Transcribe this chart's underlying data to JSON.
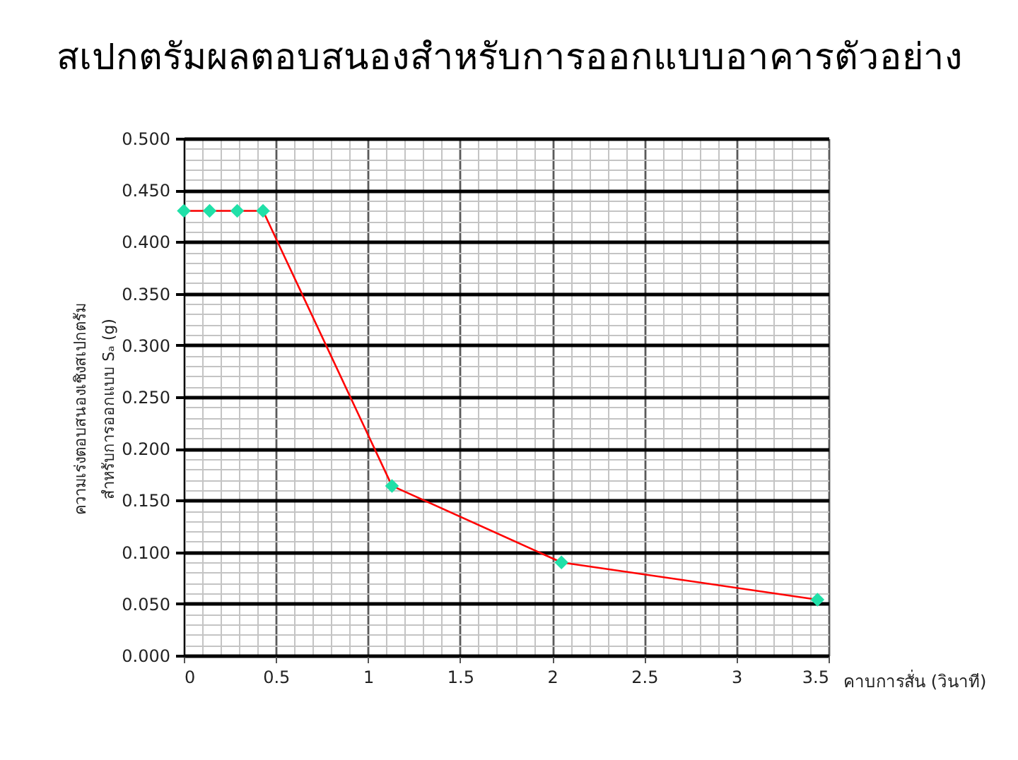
{
  "chart_data": {
    "type": "line",
    "title": "สเปกตรัมผลตอบสนองสำหรับการออกแบบอาคารตัวอย่าง",
    "xlabel": "คาบการสั่น (วินาที)",
    "ylabel": "ความเร่งตอบสนองเชิงสเปกตรัม\nสำหรับการออกแบบ Sₐ (g)",
    "x": [
      0,
      0.14,
      0.29,
      0.43,
      1.13,
      2.05,
      3.44
    ],
    "series": [
      {
        "color": "#ff0000",
        "colors": [
          "#20e0a8",
          "#20e0a8",
          "#20e0a8",
          "#20e0a8",
          "#20e0a8",
          "#20e0a8",
          "#20e0a8"
        ],
        "values": [
          0.43,
          0.43,
          0.43,
          0.43,
          0.164,
          0.09,
          0.054
        ]
      }
    ],
    "xlim": [
      0,
      3.5
    ],
    "ylim": [
      0,
      0.5
    ],
    "xticks": [
      0,
      0.5,
      1,
      1.5,
      2,
      2.5,
      3,
      3.5
    ],
    "yticks": [
      {
        "value": 0,
        "label": "0.000"
      },
      {
        "value": 0.05,
        "label": "0.050"
      },
      {
        "value": 0.1,
        "label": "0.100"
      },
      {
        "value": 0.15,
        "label": "0.150"
      },
      {
        "value": 0.2,
        "label": "0.200"
      },
      {
        "value": 0.25,
        "label": "0.250"
      },
      {
        "value": 0.3,
        "label": "0.300"
      },
      {
        "value": 0.35,
        "label": "0.350"
      },
      {
        "value": 0.4,
        "label": "0.400"
      },
      {
        "value": 0.45,
        "label": "0.450"
      },
      {
        "value": 0.5,
        "label": "0.500"
      }
    ],
    "grid": true,
    "marker": "diamond",
    "line_style": "solid"
  }
}
